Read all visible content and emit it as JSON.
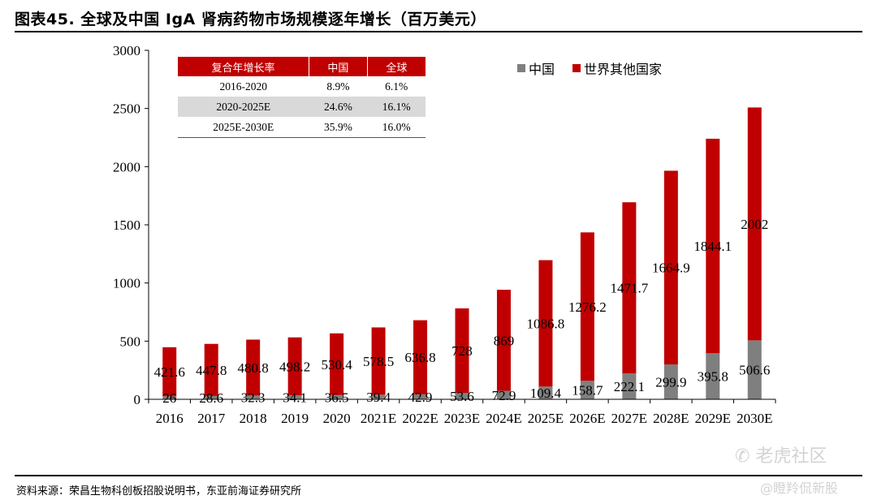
{
  "header": {
    "title": "图表45. 全球及中国 IgA 肾病药物市场规模逐年增长（百万美元）"
  },
  "cagr_table": {
    "headers": [
      "复合年增长率",
      "中国",
      "全球"
    ],
    "rows": [
      [
        "2016-2020",
        "8.9%",
        "6.1%"
      ],
      [
        "2020-2025E",
        "24.6%",
        "16.1%"
      ],
      [
        "2025E-2030E",
        "35.9%",
        "16.0%"
      ]
    ]
  },
  "chart_data": {
    "type": "bar",
    "stacked": true,
    "categories": [
      "2016",
      "2017",
      "2018",
      "2019",
      "2020",
      "2021E",
      "2022E",
      "2023E",
      "2024E",
      "2025E",
      "2026E",
      "2027E",
      "2028E",
      "2029E",
      "2030E"
    ],
    "series": [
      {
        "name": "中国",
        "color": "#7f7f7f",
        "values": [
          26,
          28.6,
          32.3,
          34.1,
          36.5,
          39.4,
          42.9,
          53.6,
          72.9,
          109.4,
          158.7,
          222.1,
          299.9,
          395.8,
          506.6
        ]
      },
      {
        "name": "世界其他国家",
        "color": "#c00000",
        "values": [
          421.6,
          447.8,
          480.8,
          498.2,
          530.4,
          578.5,
          636.8,
          728,
          869,
          1086.8,
          1276.2,
          1471.7,
          1664.9,
          1844.1,
          2002
        ]
      }
    ],
    "ylim": [
      0,
      3000
    ],
    "yticks": [
      0,
      500,
      1000,
      1500,
      2000,
      2500,
      3000
    ],
    "legend_position": "top-right"
  },
  "footer": {
    "source": "资料来源：荣昌生物科创板招股说明书，东亚前海证券研究所"
  },
  "watermark": {
    "logo_text": "老虎社区",
    "handle_text": "@瞪羚侃新股"
  }
}
